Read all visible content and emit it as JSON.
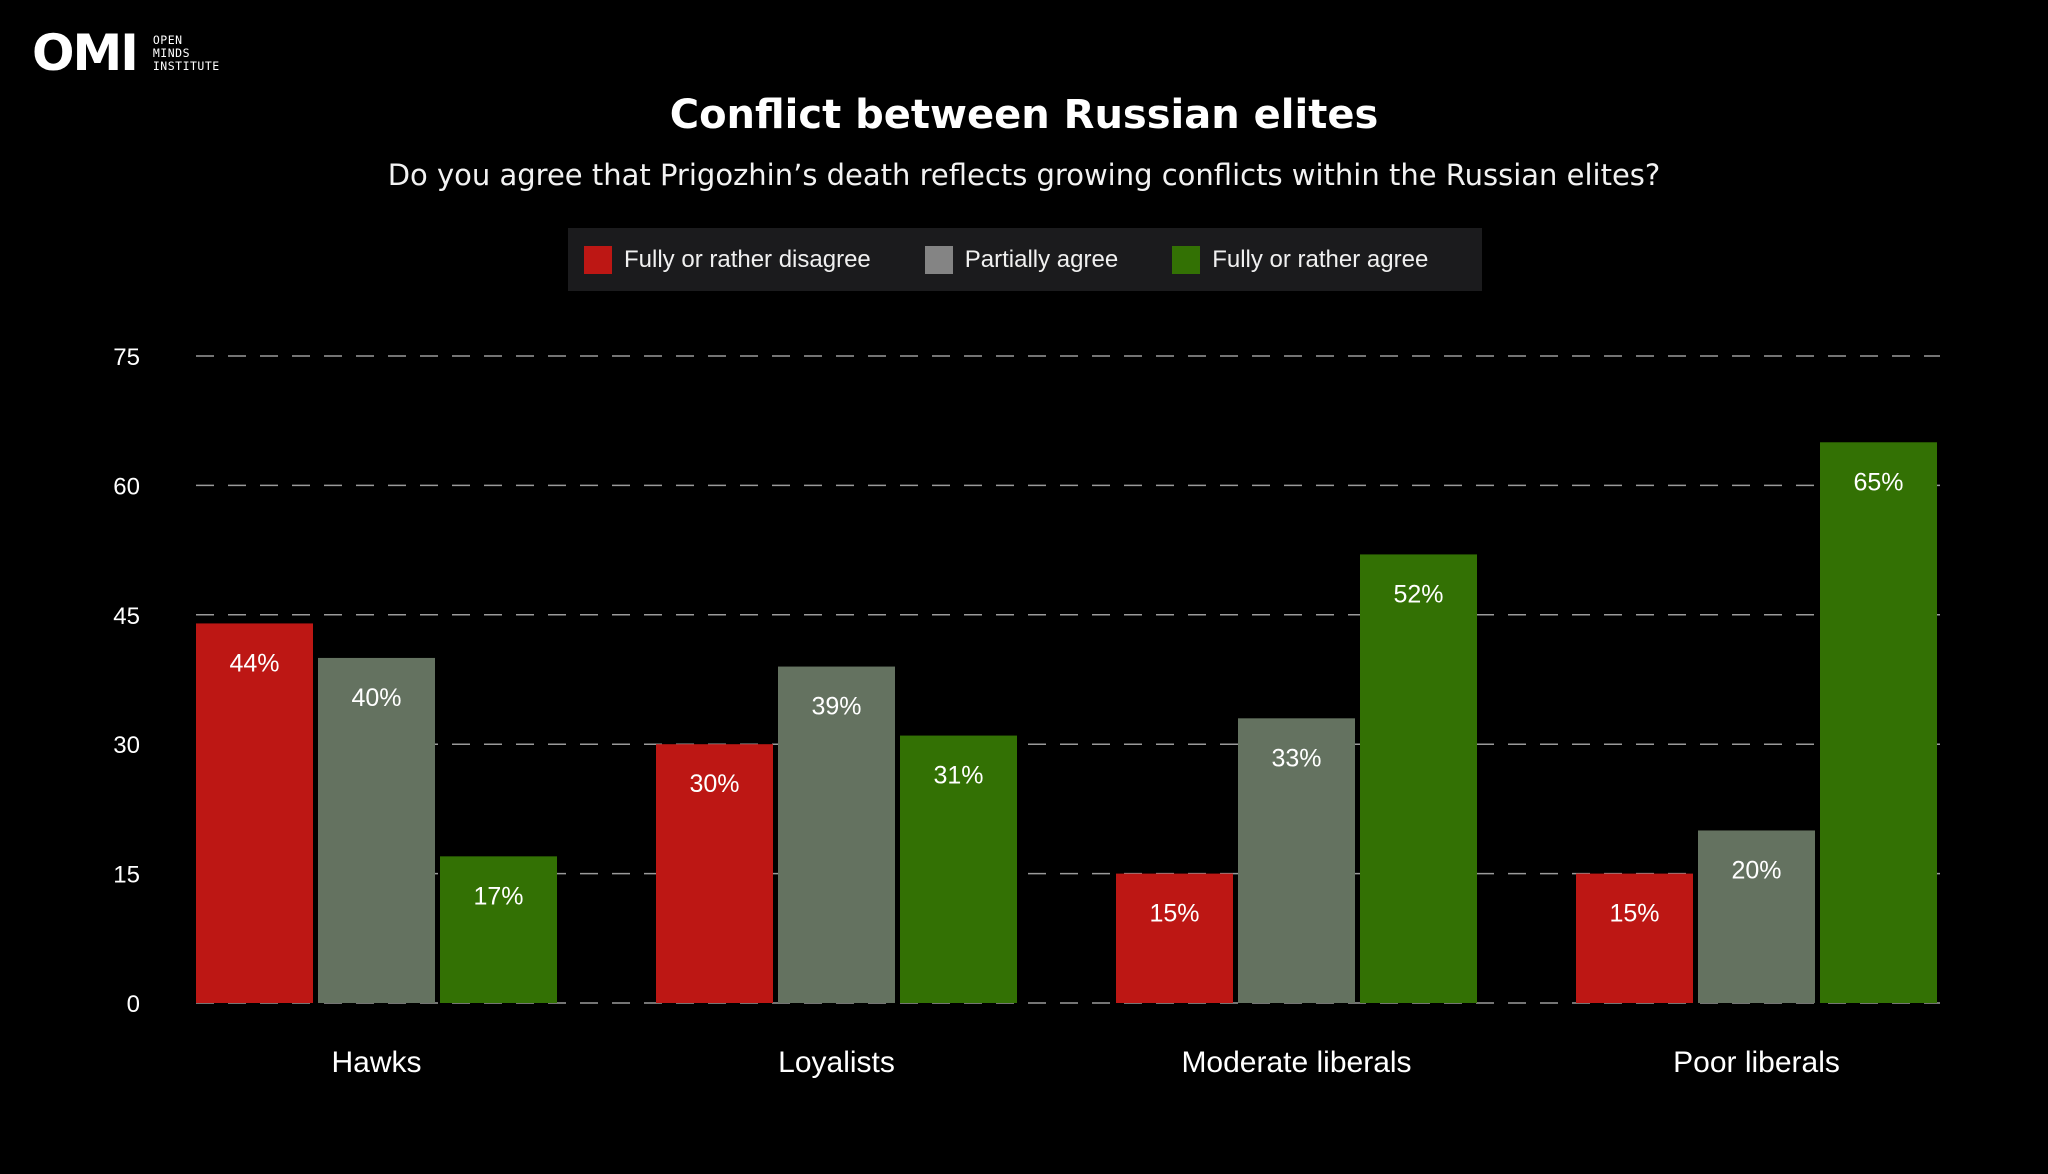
{
  "logo": {
    "mark": "OMI",
    "lines": [
      "OPEN",
      "MINDS",
      "INSTITUTE"
    ]
  },
  "colors": {
    "disagree": "#bd1714",
    "partial": "#647260",
    "agree": "#337104",
    "partial_legend": "#848484",
    "grid": "#9a9a9a"
  },
  "chart_data": {
    "type": "bar",
    "title": "Conflict between Russian elites",
    "subtitle": "Do you agree that Prigozhin’s death reflects growing conflicts within the Russian elites?",
    "categories": [
      "Hawks",
      "Loyalists",
      "Moderate liberals",
      "Poor liberals"
    ],
    "series": [
      {
        "name": "Fully or rather disagree",
        "values": [
          44,
          30,
          15,
          15
        ],
        "labels": [
          "44%",
          "30%",
          "15%",
          "15%"
        ]
      },
      {
        "name": "Partially agree",
        "values": [
          40,
          39,
          33,
          20
        ],
        "labels": [
          "40%",
          "39%",
          "33%",
          "20%"
        ]
      },
      {
        "name": "Fully or rather agree",
        "values": [
          17,
          31,
          52,
          65
        ],
        "labels": [
          "17%",
          "31%",
          "52%",
          "65%"
        ]
      }
    ],
    "yticks": [
      0,
      15,
      30,
      45,
      60,
      75
    ],
    "ylim": [
      0,
      75
    ],
    "grid": true,
    "legend_position": "top"
  }
}
